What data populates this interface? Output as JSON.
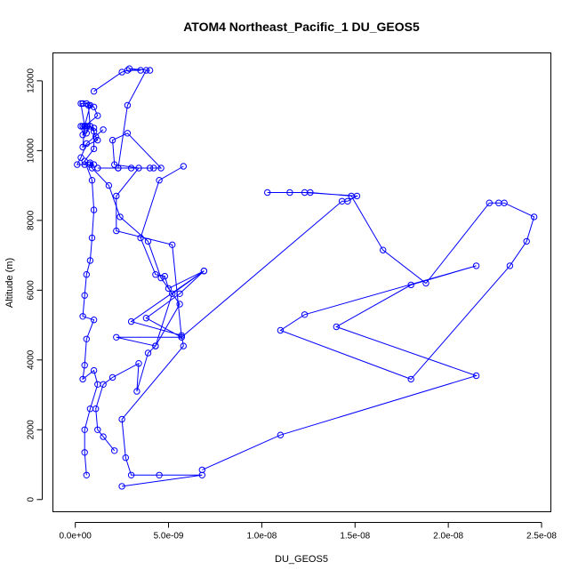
{
  "chart_data": {
    "type": "line",
    "title": "ATOM4 Northeast_Pacific_1 DU_GEOS5",
    "xlabel": "DU_GEOS5",
    "ylabel": "Altitude (m)",
    "xlim": [
      -1.2e-09,
      2.55e-08
    ],
    "ylim": [
      -350,
      12800
    ],
    "x_ticks": [
      0,
      5e-09,
      1e-08,
      1.5e-08,
      2e-08,
      2.5e-08
    ],
    "x_tick_labels": [
      "0.0e+00",
      "5.0e-09",
      "1.0e-08",
      "1.5e-08",
      "2.0e-08",
      "2.5e-08"
    ],
    "y_ticks": [
      0,
      2000,
      4000,
      6000,
      8000,
      10000,
      12000
    ],
    "y_tick_labels": [
      "0",
      "2000",
      "4000",
      "6000",
      "8000",
      "10000",
      "12000"
    ],
    "grid": false,
    "series_color": "#0000ff",
    "series": [
      {
        "x": [
          2.5e-09,
          6.8e-09,
          4.5e-09,
          3e-09,
          2.7e-09,
          2.5e-09,
          5.8e-09,
          5.7e-09,
          3e-09,
          6.9e-09,
          5.6e-09,
          3.8e-09,
          5.7e-09,
          5.2e-09,
          2.2e-09,
          2.2e-09,
          3.4e-09,
          2.1e-09,
          2e-09,
          2.8e-09,
          4.6e-09,
          4.2e-09,
          4e-09,
          3e-09,
          2.3e-09,
          1.2e-09,
          2.3e-09,
          2.8e-09,
          3.8e-09,
          4e-09,
          2.9e-09,
          3.5e-09,
          2.8e-09,
          2.5e-09,
          1e-09
        ],
        "y": [
          380,
          700,
          700,
          700,
          1200,
          2300,
          4400,
          4700,
          5100,
          6550,
          5900,
          5200,
          4650,
          7300,
          7700,
          8700,
          9500,
          9600,
          10300,
          10500,
          9500,
          9500,
          9500,
          9500,
          9500,
          9500,
          9500,
          11300,
          12300,
          12300,
          12350,
          12300,
          12300,
          12250,
          11700
        ]
      },
      {
        "x": [
          6.8e-09,
          1.1e-08,
          2.15e-08,
          1.4e-08,
          1.8e-08,
          2.15e-08,
          1.23e-08,
          1.1e-08,
          1.8e-08,
          2.33e-08,
          2.42e-08,
          2.46e-08,
          2.3e-08,
          2.27e-08,
          2.22e-08,
          1.88e-08,
          1.65e-08,
          1.48e-08,
          1.26e-08,
          1.15e-08,
          1.03e-08,
          1.23e-08,
          1.51e-08,
          1.46e-08,
          1.43e-08,
          5.7e-09,
          2.2e-09,
          4.3e-09,
          5.2e-09,
          6.9e-09,
          5e-09,
          4.8e-09,
          4.3e-09,
          3.5e-09,
          4.5e-09,
          5.8e-09
        ],
        "y": [
          850,
          1850,
          3550,
          4950,
          6150,
          6700,
          5300,
          4850,
          3450,
          6700,
          7400,
          8100,
          8500,
          8500,
          8500,
          6200,
          7150,
          8700,
          8800,
          8800,
          8800,
          8800,
          8700,
          8550,
          8550,
          4650,
          4650,
          4400,
          5900,
          6550,
          6050,
          6400,
          6450,
          7500,
          9150,
          9550
        ]
      },
      {
        "x": [
          6e-10,
          5e-10,
          5e-10,
          8e-10,
          1.2e-09,
          1e-09,
          4e-10,
          5e-10,
          6e-10,
          1e-09,
          4e-10,
          5e-10,
          6e-10,
          8e-10,
          9e-10,
          1e-09,
          9e-10,
          5e-10,
          1e-09,
          1e-09,
          5e-10,
          8e-10,
          7e-10,
          8e-10,
          1e-09,
          1.1e-09,
          1.2e-09,
          4e-10,
          5e-10,
          1.2e-09,
          1e-09,
          6e-10,
          4e-10,
          3e-10,
          5e-10,
          8e-10,
          6e-10,
          4e-10,
          5e-10,
          6e-10,
          3e-10,
          4e-10,
          5e-10
        ],
        "y": [
          700,
          1350,
          2000,
          2600,
          3300,
          3700,
          3450,
          3850,
          4600,
          5150,
          5250,
          5850,
          6450,
          6850,
          7500,
          8300,
          9150,
          9700,
          10050,
          10650,
          10700,
          11300,
          11300,
          10700,
          10550,
          10400,
          10300,
          10100,
          10700,
          11000,
          11250,
          11350,
          11350,
          11350,
          10700,
          10700,
          10500,
          10450,
          10700,
          10700,
          10700,
          10700,
          10600
        ]
      },
      {
        "x": [
          2.1e-09,
          1.5e-09,
          1.2e-09,
          1.1e-09,
          1.5e-09,
          2e-09,
          3.4e-09,
          3.3e-09,
          3.9e-09,
          4.3e-09,
          5.6e-09,
          4.6e-09,
          3.9e-09,
          2.4e-09,
          1.8e-09,
          9e-10,
          8e-10,
          8e-10,
          1e-09,
          5e-10,
          1e-10,
          3e-10,
          6e-10,
          1.5e-09
        ],
        "y": [
          1400,
          1800,
          2000,
          2600,
          3300,
          3500,
          3900,
          3100,
          4200,
          4400,
          5600,
          6350,
          7400,
          8100,
          9000,
          9500,
          9600,
          9650,
          9600,
          9600,
          9600,
          9800,
          10200,
          10600
        ]
      }
    ]
  }
}
